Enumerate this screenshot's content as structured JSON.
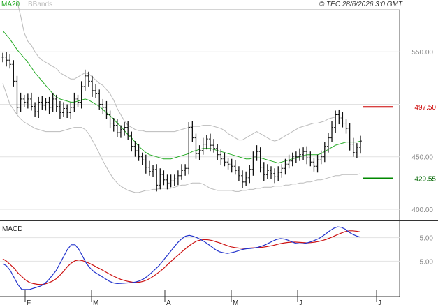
{
  "header": {
    "legend_ma20": "MA20",
    "legend_bbands": "BBands",
    "copyright": "© TEC 28/6/2026 3:0 GMT"
  },
  "colors": {
    "ma20": "#22aa22",
    "bbands": "#bbbbbb",
    "price_bars": "#111111",
    "upper_level": "#cc0000",
    "lower_level": "#008800",
    "macd_line": "#2233cc",
    "signal_line": "#cc1111",
    "grid": "#e2e2e2",
    "axis_text": "#888888"
  },
  "chart_data": [
    {
      "type": "ohlc",
      "name": "price",
      "x_ticks": [
        "F",
        "M",
        "A",
        "M",
        "J",
        "J"
      ],
      "y_ticks": [
        400,
        450,
        500,
        550
      ],
      "y_tick_labels": [
        "400.00",
        "450.00",
        "",
        "550.00"
      ],
      "ylim": [
        390,
        590
      ],
      "levels": [
        {
          "label": "497.50",
          "value": 497.5,
          "style": "resistance"
        },
        {
          "label": "429.55",
          "value": 429.55,
          "style": "support"
        }
      ],
      "close": [
        545,
        542,
        538,
        522,
        497,
        505,
        502,
        505,
        498,
        493,
        502,
        499,
        502,
        497,
        505,
        498,
        492,
        496,
        492,
        497,
        505,
        502,
        517,
        527,
        522,
        513,
        510,
        500,
        497,
        490,
        482,
        480,
        473,
        476,
        478,
        470,
        460,
        456,
        450,
        447,
        440,
        436,
        438,
        423,
        433,
        428,
        425,
        427,
        429,
        432,
        437,
        439,
        478,
        468,
        453,
        456,
        462,
        467,
        461,
        458,
        452,
        448,
        445,
        443,
        441,
        437,
        432,
        426,
        430,
        438,
        450,
        455,
        440,
        433,
        437,
        434,
        431,
        435,
        439,
        443,
        446,
        450,
        450,
        452,
        455,
        449,
        445,
        441,
        447,
        450,
        460,
        468,
        478,
        490,
        487,
        482,
        477,
        462,
        454,
        459,
        465
      ],
      "ma20": [
        570,
        566,
        562,
        557,
        552,
        548,
        544,
        540,
        535,
        530,
        526,
        522,
        518,
        514,
        510,
        507,
        505,
        504,
        503,
        502,
        502,
        503,
        504,
        505,
        504,
        502,
        500,
        498,
        495,
        492,
        489,
        486,
        482,
        479,
        475,
        471,
        468,
        464,
        460,
        457,
        454,
        452,
        451,
        450,
        449,
        448,
        448,
        448,
        449,
        450,
        451,
        452,
        453,
        455,
        456,
        457,
        458,
        458,
        458,
        457,
        456,
        455,
        454,
        453,
        452,
        451,
        450,
        449,
        448,
        448,
        449,
        449,
        449,
        448,
        447,
        446,
        445,
        444,
        445,
        446,
        447,
        448,
        449,
        450,
        451,
        452,
        452,
        452,
        452,
        453,
        455,
        457,
        459,
        461,
        462,
        463,
        464,
        464,
        464,
        464,
        465
      ],
      "bb_upper": [
        630,
        628,
        622,
        612,
        598,
        584,
        568,
        560,
        556,
        550,
        545,
        542,
        540,
        538,
        536,
        534,
        530,
        528,
        526,
        524,
        524,
        526,
        528,
        530,
        529,
        526,
        523,
        520,
        518,
        514,
        510,
        504,
        496,
        490,
        484,
        480,
        478,
        476,
        475,
        475,
        474,
        474,
        474,
        474,
        474,
        474,
        474,
        474,
        474,
        475,
        476,
        477,
        478,
        479,
        479,
        479,
        480,
        480,
        480,
        479,
        478,
        477,
        475,
        472,
        470,
        468,
        466,
        466,
        468,
        470,
        472,
        474,
        472,
        470,
        468,
        466,
        465,
        466,
        468,
        470,
        472,
        474,
        476,
        478,
        479,
        480,
        481,
        482,
        482,
        483,
        484,
        486,
        487,
        488,
        488,
        488,
        488,
        488,
        488,
        488,
        488
      ],
      "bb_lower": [
        520,
        510,
        500,
        495,
        490,
        486,
        483,
        481,
        479,
        477,
        476,
        475,
        474,
        474,
        474,
        474,
        474,
        475,
        476,
        477,
        478,
        478,
        478,
        476,
        472,
        466,
        460,
        453,
        446,
        440,
        434,
        429,
        425,
        422,
        420,
        418,
        417,
        416,
        416,
        417,
        418,
        418,
        419,
        419,
        420,
        420,
        420,
        420,
        421,
        422,
        423,
        423,
        424,
        425,
        425,
        425,
        424,
        422,
        420,
        419,
        418,
        418,
        418,
        418,
        418,
        417,
        417,
        418,
        418,
        419,
        419,
        420,
        420,
        421,
        421,
        421,
        422,
        422,
        422,
        423,
        423,
        424,
        424,
        425,
        425,
        426,
        426,
        427,
        428,
        428,
        429,
        430,
        431,
        432,
        432,
        433,
        433,
        433,
        433,
        433,
        434
      ]
    },
    {
      "type": "line",
      "name": "macd",
      "title": "MACD",
      "y_ticks": [
        5,
        -5
      ],
      "y_tick_labels": [
        "5.00",
        "-5.00"
      ],
      "ylim": [
        -20,
        12
      ],
      "series": [
        {
          "role": "macd",
          "values": [
            -6,
            -7,
            -9,
            -12,
            -15,
            -17,
            -17,
            -17,
            -16.5,
            -16,
            -15.5,
            -14.5,
            -13,
            -11,
            -9,
            -6,
            -3,
            0,
            2,
            2,
            0,
            -3,
            -6,
            -8,
            -9.5,
            -10.5,
            -11.5,
            -12.5,
            -13.5,
            -14.2,
            -14.5,
            -14.4,
            -14.3,
            -14.2,
            -14.1,
            -13.8,
            -13.3,
            -12.5,
            -11.4,
            -10,
            -8.5,
            -7,
            -5,
            -3,
            -1,
            1,
            3,
            4.5,
            5.6,
            6,
            5.6,
            5,
            4.2,
            3.3,
            2.2,
            1,
            -0.2,
            -1,
            -1.4,
            -1.7,
            -1.4,
            -1,
            -0.5,
            0,
            0.3,
            0.4,
            0.6,
            0.9,
            1.4,
            2,
            2.8,
            3.6,
            4.3,
            4.6,
            4.4,
            3.9,
            3.2,
            2.6,
            2.4,
            2.5,
            2.8,
            3.3,
            3.9,
            4.6,
            5.6,
            6.8,
            8,
            9,
            9.6,
            9.4,
            8.6,
            7.3,
            6.4,
            5.7,
            5.2
          ]
        },
        {
          "role": "signal",
          "values": [
            -4,
            -5,
            -6.5,
            -8,
            -10,
            -11.5,
            -13,
            -14,
            -14.5,
            -14.8,
            -14.9,
            -14.7,
            -14.2,
            -13.5,
            -12.5,
            -11,
            -9.2,
            -7.3,
            -5.8,
            -4.8,
            -4.5,
            -4.8,
            -5.4,
            -6.1,
            -6.9,
            -7.8,
            -8.6,
            -9.5,
            -10.4,
            -11.3,
            -12,
            -12.7,
            -13.2,
            -13.6,
            -13.9,
            -14,
            -13.9,
            -13.5,
            -12.9,
            -12,
            -10.9,
            -9.7,
            -8.4,
            -6.9,
            -5.4,
            -3.9,
            -2.5,
            -1.1,
            0.3,
            1.6,
            2.7,
            3.6,
            4,
            4.2,
            4.1,
            3.8,
            3.3,
            2.8,
            2.2,
            1.6,
            1.1,
            0.8,
            0.6,
            0.5,
            0.5,
            0.6,
            0.7,
            0.8,
            0.9,
            1.1,
            1.4,
            1.7,
            2.1,
            2.5,
            2.8,
            3,
            3.1,
            3.1,
            3,
            2.9,
            2.8,
            2.9,
            3.1,
            3.4,
            3.8,
            4.3,
            4.9,
            5.6,
            6.3,
            7,
            7.6,
            7.9,
            7.9,
            7.7,
            7.4
          ]
        }
      ]
    }
  ]
}
